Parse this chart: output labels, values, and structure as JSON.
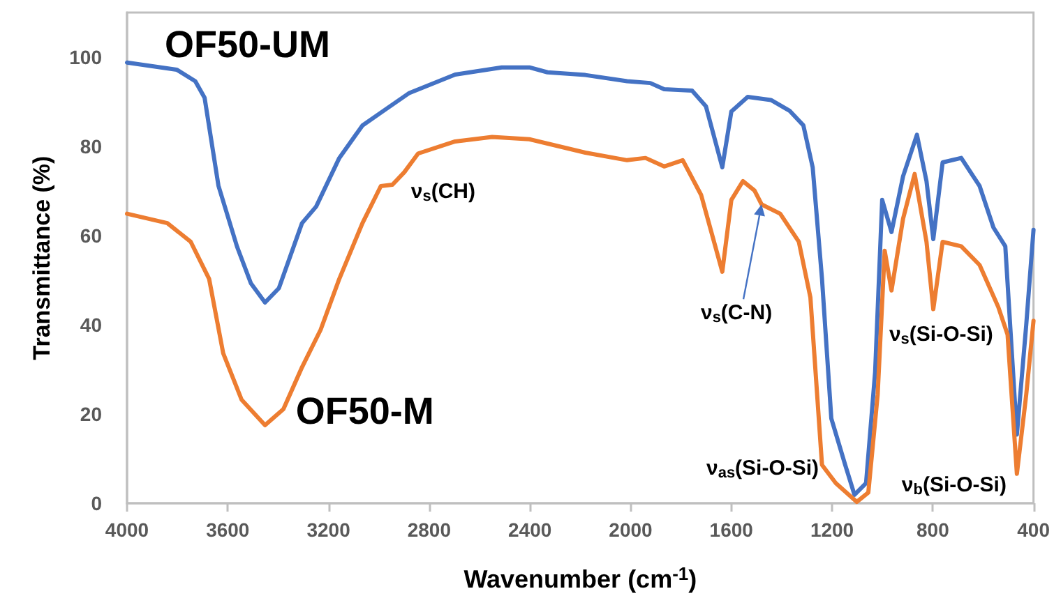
{
  "chart_data": {
    "type": "line",
    "xlabel": "Wavenumber (cm$^{-1}$)",
    "ylabel": "Transmittance (%)",
    "xlim": [
      4000,
      400
    ],
    "xticks": [
      4000,
      3600,
      3200,
      2800,
      2400,
      2000,
      1600,
      1200,
      800,
      400
    ],
    "ylim": [
      0,
      110
    ],
    "yticks": [
      0,
      20,
      40,
      60,
      80,
      100
    ],
    "grid": false,
    "legend": false,
    "marker": "none",
    "line_style": "solid",
    "series": [
      {
        "name": "OF50-UM",
        "color": "#4472c4",
        "x": [
          4000,
          3803,
          3729,
          3692,
          3637,
          3563,
          3508,
          3452,
          3397,
          3305,
          3249,
          3157,
          3065,
          2973,
          2881,
          2697,
          2512,
          2402,
          2330,
          2180,
          2014,
          1922,
          1867,
          1756,
          1701,
          1636,
          1600,
          1535,
          1443,
          1369,
          1314,
          1277,
          1240,
          1203,
          1148,
          1111,
          1065,
          1029,
          1001,
          964,
          918,
          863,
          825,
          798,
          761,
          687,
          614,
          559,
          512,
          466,
          429,
          400
        ],
        "values": [
          98.8,
          97.2,
          94.6,
          90.9,
          71.2,
          57.5,
          49.3,
          45,
          48.2,
          62.8,
          66.5,
          77.4,
          84.7,
          88.3,
          91.9,
          96.1,
          97.7,
          97.7,
          96.6,
          96,
          94.6,
          94.2,
          92.8,
          92.5,
          89,
          75.3,
          87.8,
          91.1,
          90.4,
          88,
          84.7,
          75.3,
          50.3,
          19,
          8.6,
          1.9,
          4.5,
          29.4,
          68,
          60.8,
          73.3,
          82.6,
          72.2,
          59.2,
          76.4,
          77.4,
          71.1,
          61.8,
          57.6,
          15.4,
          39.9,
          61.3
        ]
      },
      {
        "name": "OF50-M",
        "color": "#ed7d31",
        "x": [
          4000,
          3840,
          3747,
          3674,
          3618,
          3545,
          3452,
          3379,
          3305,
          3231,
          3157,
          3065,
          2992,
          2946,
          2899,
          2844,
          2697,
          2550,
          2402,
          2180,
          2014,
          1941,
          1867,
          1793,
          1720,
          1636,
          1600,
          1554,
          1508,
          1480,
          1406,
          1332,
          1286,
          1240,
          1185,
          1102,
          1056,
          1019,
          991,
          964,
          918,
          872,
          825,
          798,
          761,
          687,
          614,
          540,
          503,
          466,
          429,
          400
        ],
        "values": [
          64.9,
          62.8,
          58.6,
          50.3,
          33.6,
          23.2,
          17.5,
          21.1,
          30.5,
          38.9,
          50.3,
          62.8,
          71.1,
          71.4,
          74.2,
          78.4,
          81.1,
          82.1,
          81.6,
          78.6,
          76.9,
          77.4,
          75.5,
          76.9,
          69.1,
          51.9,
          68,
          72.2,
          70.1,
          67,
          64.9,
          58.6,
          46.1,
          8.6,
          4.5,
          0.3,
          2.4,
          24.3,
          56.6,
          47.7,
          63.8,
          73.8,
          58.6,
          43.5,
          58.6,
          57.6,
          53.4,
          44,
          37.8,
          6.6,
          24.3,
          40.9
        ]
      }
    ],
    "annotations": [
      {
        "text": "ν$_{s}$(CH)",
        "x": 2900,
        "y": 73
      },
      {
        "text": "ν$_{s}$(C-N)",
        "x": 1480,
        "y": 67
      },
      {
        "text": "ν$_{as}$(Si-O-Si)",
        "x": 1110,
        "y": 1
      },
      {
        "text": "ν$_{s}$(Si-O-Si)",
        "x": 800,
        "y": 43.5
      },
      {
        "text": "ν$_{b}$(Si-O-Si)",
        "x": 466,
        "y": 6.6
      }
    ]
  }
}
